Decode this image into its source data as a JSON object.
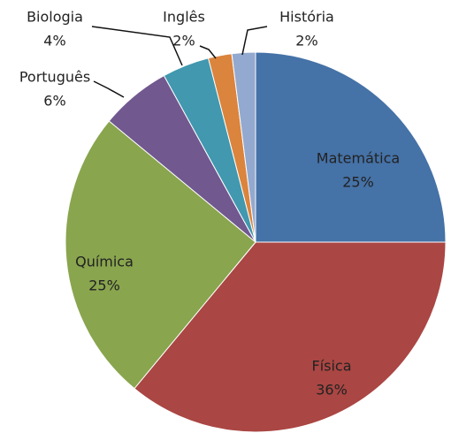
{
  "chart_data": {
    "type": "pie",
    "categories": [
      "Matemática",
      "Física",
      "Química",
      "Português",
      "Biologia",
      "Inglês",
      "História"
    ],
    "values": [
      25,
      36,
      25,
      6,
      4,
      2,
      2
    ],
    "value_labels": [
      "25%",
      "36%",
      "25%",
      "6%",
      "4%",
      "2%",
      "2%"
    ],
    "colors": [
      "#4572a7",
      "#aa4643",
      "#89a54e",
      "#71588f",
      "#4198af",
      "#db843d",
      "#93a9cf"
    ]
  }
}
